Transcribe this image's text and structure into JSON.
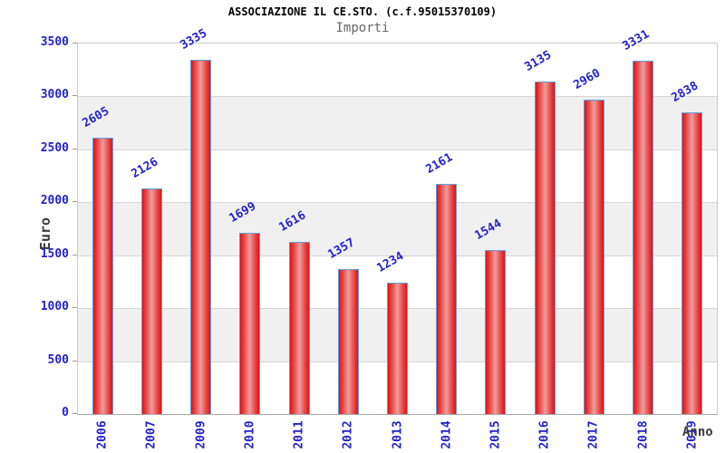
{
  "chart_data": {
    "type": "bar",
    "title": "ASSOCIAZIONE IL CE.STO. (c.f.95015370109)",
    "subtitle": "Importi",
    "xlabel": "Anno",
    "ylabel": "Euro",
    "categories": [
      "2006",
      "2007",
      "2009",
      "2010",
      "2011",
      "2012",
      "2013",
      "2014",
      "2015",
      "2016",
      "2017",
      "2018",
      "2019"
    ],
    "values": [
      2605,
      2126,
      3335,
      1699,
      1616,
      1357,
      1234,
      2161,
      1544,
      3135,
      2960,
      3331,
      2838
    ],
    "ylim": [
      0,
      3500
    ],
    "ytick_step": 500,
    "ytick_labels": [
      "0",
      "500",
      "1000",
      "1500",
      "2000",
      "2500",
      "3000",
      "3500"
    ],
    "grid": true,
    "band_pattern": "alternating-gray-every-other-interval",
    "legend": "none",
    "value_label_rotation_deg": -30,
    "x_label_rotation_deg": -90,
    "colors": {
      "title": "#000000",
      "subtitle": "#666666",
      "tick_and_value_labels": "#2222cc",
      "axis_titles": "#3a3a3a",
      "bar_fill_edge": "#e01111",
      "bar_fill_center": "#ee9d9d",
      "bar_border": "#5e9fe0",
      "band_gray": "#f0f0f1",
      "gridline": "#d6d6d6",
      "plot_border": "#c9c9c9"
    }
  }
}
